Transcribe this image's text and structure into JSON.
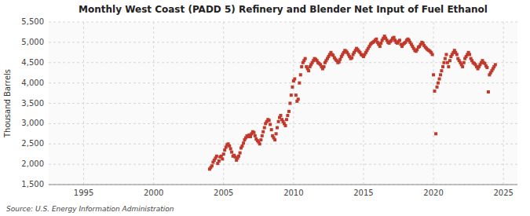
{
  "chart_data": {
    "type": "scatter",
    "title": "Monthly West Coast (PADD 5) Refinery and Blender Net Input of Fuel Ethanol",
    "ylabel": "Thousand Barrels",
    "annotations": [
      "Source: U.S. Energy Information Administration"
    ],
    "color": "#c0392b",
    "marker": "square",
    "grid": true,
    "xlim": [
      1992.5,
      2026.0
    ],
    "xticks": [
      1995,
      2000,
      2005,
      2010,
      2015,
      2020,
      2025
    ],
    "ylim": [
      1500,
      5500
    ],
    "yticks": [
      {
        "value": 1500,
        "label": "1,500"
      },
      {
        "value": 2000,
        "label": "2,000"
      },
      {
        "value": 2500,
        "label": "2,500"
      },
      {
        "value": 3000,
        "label": "3,000"
      },
      {
        "value": 3500,
        "label": "3,500"
      },
      {
        "value": 4000,
        "label": "4,000"
      },
      {
        "value": 4500,
        "label": "4,500"
      },
      {
        "value": 5000,
        "label": "5,000"
      },
      {
        "value": 5500,
        "label": "5,500"
      }
    ],
    "x": [
      2004.0,
      2004.08,
      2004.17,
      2004.25,
      2004.33,
      2004.42,
      2004.5,
      2004.58,
      2004.67,
      2004.75,
      2004.83,
      2004.92,
      2005.0,
      2005.08,
      2005.17,
      2005.25,
      2005.33,
      2005.42,
      2005.5,
      2005.58,
      2005.67,
      2005.75,
      2005.83,
      2005.92,
      2006.0,
      2006.08,
      2006.17,
      2006.25,
      2006.33,
      2006.42,
      2006.5,
      2006.58,
      2006.67,
      2006.75,
      2006.83,
      2006.92,
      2007.0,
      2007.08,
      2007.17,
      2007.25,
      2007.33,
      2007.42,
      2007.5,
      2007.58,
      2007.67,
      2007.75,
      2007.83,
      2007.92,
      2008.0,
      2008.08,
      2008.17,
      2008.25,
      2008.33,
      2008.42,
      2008.5,
      2008.58,
      2008.67,
      2008.75,
      2008.83,
      2008.92,
      2009.0,
      2009.08,
      2009.17,
      2009.25,
      2009.33,
      2009.42,
      2009.5,
      2009.58,
      2009.67,
      2009.75,
      2009.83,
      2009.92,
      2010.0,
      2010.08,
      2010.17,
      2010.25,
      2010.33,
      2010.42,
      2010.5,
      2010.58,
      2010.67,
      2010.75,
      2010.83,
      2010.92,
      2011.0,
      2011.08,
      2011.17,
      2011.25,
      2011.33,
      2011.42,
      2011.5,
      2011.58,
      2011.67,
      2011.75,
      2011.83,
      2011.92,
      2012.0,
      2012.08,
      2012.17,
      2012.25,
      2012.33,
      2012.42,
      2012.5,
      2012.58,
      2012.67,
      2012.75,
      2012.83,
      2012.92,
      2013.0,
      2013.08,
      2013.17,
      2013.25,
      2013.33,
      2013.42,
      2013.5,
      2013.58,
      2013.67,
      2013.75,
      2013.83,
      2013.92,
      2014.0,
      2014.08,
      2014.17,
      2014.25,
      2014.33,
      2014.42,
      2014.5,
      2014.58,
      2014.67,
      2014.75,
      2014.83,
      2014.92,
      2015.0,
      2015.08,
      2015.17,
      2015.25,
      2015.33,
      2015.42,
      2015.5,
      2015.58,
      2015.67,
      2015.75,
      2015.83,
      2015.92,
      2016.0,
      2016.08,
      2016.17,
      2016.25,
      2016.33,
      2016.42,
      2016.5,
      2016.58,
      2016.67,
      2016.75,
      2016.83,
      2016.92,
      2017.0,
      2017.08,
      2017.17,
      2017.25,
      2017.33,
      2017.42,
      2017.5,
      2017.58,
      2017.67,
      2017.75,
      2017.83,
      2017.92,
      2018.0,
      2018.08,
      2018.17,
      2018.25,
      2018.33,
      2018.42,
      2018.5,
      2018.58,
      2018.67,
      2018.75,
      2018.83,
      2018.92,
      2019.0,
      2019.08,
      2019.17,
      2019.25,
      2019.33,
      2019.42,
      2019.5,
      2019.58,
      2019.67,
      2019.75,
      2019.83,
      2019.92,
      2020.0,
      2020.08,
      2020.17,
      2020.25,
      2020.33,
      2020.42,
      2020.5,
      2020.58,
      2020.67,
      2020.75,
      2020.83,
      2020.92,
      2021.0,
      2021.08,
      2021.17,
      2021.25,
      2021.33,
      2021.42,
      2021.5,
      2021.58,
      2021.67,
      2021.75,
      2021.83,
      2021.92,
      2022.0,
      2022.08,
      2022.17,
      2022.25,
      2022.33,
      2022.42,
      2022.5,
      2022.58,
      2022.67,
      2022.75,
      2022.83,
      2022.92,
      2023.0,
      2023.08,
      2023.17,
      2023.25,
      2023.33,
      2023.42,
      2023.5,
      2023.58,
      2023.67,
      2023.75,
      2023.83,
      2023.92,
      2024.0,
      2024.08,
      2024.17,
      2024.25,
      2024.33,
      2024.42
    ],
    "values": [
      1880,
      1920,
      1960,
      2050,
      2100,
      2150,
      2200,
      2020,
      2080,
      2180,
      2200,
      2130,
      2250,
      2350,
      2420,
      2480,
      2500,
      2450,
      2380,
      2300,
      2200,
      2220,
      2180,
      2100,
      2150,
      2200,
      2280,
      2400,
      2450,
      2520,
      2600,
      2650,
      2700,
      2680,
      2720,
      2680,
      2750,
      2800,
      2780,
      2700,
      2620,
      2580,
      2550,
      2500,
      2600,
      2700,
      2800,
      2900,
      3000,
      3050,
      3100,
      3080,
      2980,
      2850,
      2700,
      2650,
      2600,
      2750,
      2900,
      3050,
      3150,
      3200,
      3100,
      3050,
      3000,
      2950,
      3100,
      3200,
      3300,
      3500,
      3700,
      3900,
      4050,
      4100,
      3700,
      3550,
      3600,
      4000,
      4200,
      4400,
      4500,
      4550,
      4600,
      4400,
      4350,
      4300,
      4400,
      4450,
      4500,
      4550,
      4600,
      4580,
      4550,
      4500,
      4480,
      4450,
      4400,
      4350,
      4400,
      4500,
      4550,
      4600,
      4650,
      4700,
      4750,
      4700,
      4680,
      4620,
      4580,
      4550,
      4500,
      4520,
      4580,
      4650,
      4700,
      4750,
      4800,
      4780,
      4750,
      4700,
      4650,
      4600,
      4620,
      4700,
      4750,
      4800,
      4850,
      4820,
      4780,
      4750,
      4700,
      4680,
      4650,
      4700,
      4750,
      4800,
      4850,
      4900,
      4950,
      4980,
      5000,
      5020,
      5050,
      5080,
      5000,
      4950,
      4900,
      4980,
      5050,
      5100,
      5150,
      5100,
      5050,
      5000,
      4980,
      5020,
      5050,
      5100,
      5120,
      5050,
      5000,
      4980,
      5020,
      5050,
      4950,
      4900,
      4950,
      4980,
      5000,
      5050,
      5080,
      5050,
      5000,
      4950,
      4900,
      4850,
      4800,
      4780,
      4820,
      4880,
      4900,
      4950,
      5000,
      4980,
      4920,
      4880,
      4850,
      4820,
      4800,
      4780,
      4750,
      4700,
      4200,
      3800,
      2750,
      3900,
      4000,
      4100,
      4200,
      4300,
      4400,
      4500,
      4600,
      4700,
      4500,
      4400,
      4550,
      4650,
      4700,
      4750,
      4800,
      4750,
      4700,
      4600,
      4550,
      4500,
      4450,
      4400,
      4500,
      4600,
      4650,
      4700,
      4750,
      4700,
      4600,
      4550,
      4500,
      4480,
      4450,
      4400,
      4350,
      4400,
      4450,
      4500,
      4550,
      4500,
      4480,
      4420,
      4380,
      3780,
      4200,
      4250,
      4300,
      4350,
      4400,
      4450
    ]
  }
}
